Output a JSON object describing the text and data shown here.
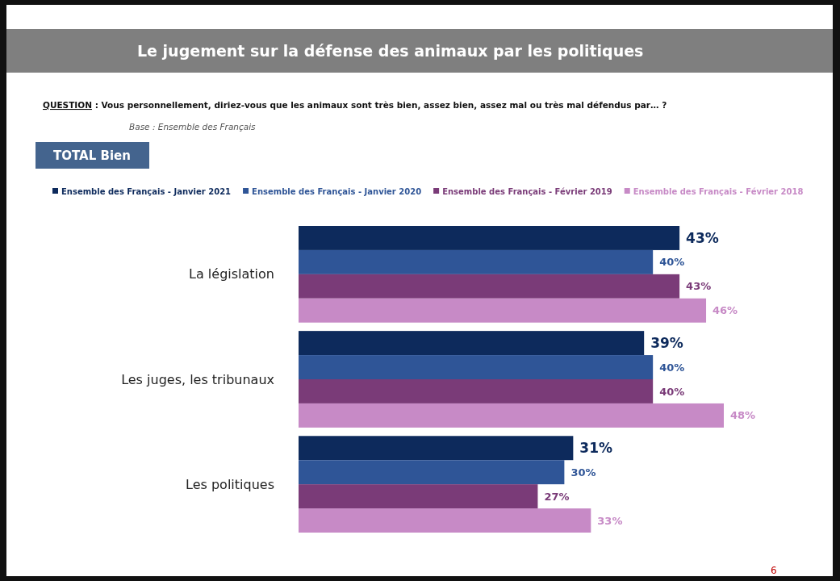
{
  "chart_data": {
    "type": "bar",
    "orientation": "horizontal",
    "title": "Le jugement sur la défense des animaux par les politiques",
    "subtitle": "QUESTION : Vous personnellement, diriez-vous que les animaux sont très bien, assez bien, assez mal ou très mal défendus par… ?",
    "annotations": [
      "Base : Ensemble des Français",
      "TOTAL Bien",
      "6"
    ],
    "categories": [
      "La législation",
      "Les juges, les tribunaux",
      "Les politiques"
    ],
    "series": [
      {
        "name": "Ensemble des Français - Janvier 2021",
        "color": "#0d2a5c",
        "values": [
          43,
          39,
          31
        ],
        "value_labels": [
          "43%",
          "39%",
          "31%"
        ]
      },
      {
        "name": "Ensemble des Français - Janvier 2020",
        "color": "#2f5597",
        "values": [
          40,
          40,
          30
        ],
        "value_labels": [
          "40%",
          "40%",
          "30%"
        ]
      },
      {
        "name": "Ensemble des Français - Février 2019",
        "color": "#7a3b78",
        "values": [
          43,
          40,
          27
        ],
        "value_labels": [
          "43%",
          "40%",
          "27%"
        ]
      },
      {
        "name": "Ensemble des Français - Février 2018",
        "color": "#c78ac6",
        "values": [
          46,
          48,
          33
        ],
        "value_labels": [
          "46%",
          "48%",
          "33%"
        ]
      }
    ],
    "legend": "top",
    "grid": false
  }
}
